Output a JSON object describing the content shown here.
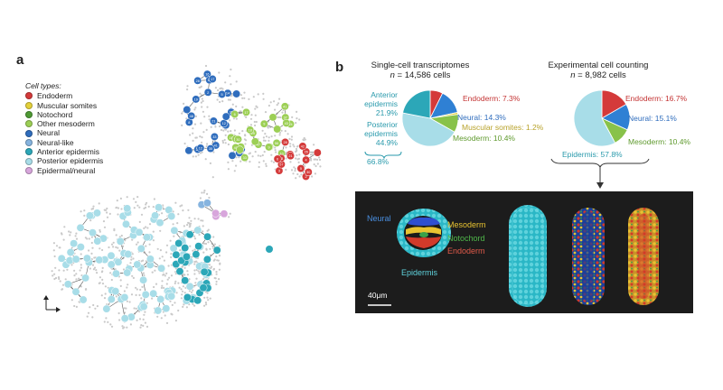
{
  "panel_a": {
    "letter": "a",
    "legend_title": "Cell types:",
    "legend": [
      {
        "label": "Endoderm",
        "color": "#d43a3a"
      },
      {
        "label": "Muscular somites",
        "color": "#e4d13a"
      },
      {
        "label": "Notochord",
        "color": "#4e9a34"
      },
      {
        "label": "Other mesoderm",
        "color": "#9ccf55"
      },
      {
        "label": "Neural",
        "color": "#2f6dbd"
      },
      {
        "label": "Neural-like",
        "color": "#86b4df"
      },
      {
        "label": "Anterior epidermis",
        "color": "#2ca7b8"
      },
      {
        "label": "Posterior epidermis",
        "color": "#a8dde8"
      },
      {
        "label": "Epidermal/neural",
        "color": "#d8a6dc"
      }
    ],
    "node_labels": {
      "neural": [
        "14",
        "19",
        "2",
        "8",
        "17",
        "16",
        "5",
        "21",
        "39",
        "40",
        "48",
        "15",
        "17",
        "33",
        "20",
        "12",
        "43",
        "41",
        "35",
        "12",
        "28"
      ],
      "mesoderm": [
        "29",
        "8",
        "56",
        "18",
        "24",
        "16",
        "20",
        "41",
        "37",
        "6",
        "40",
        "9",
        "47",
        "43",
        "30",
        "41",
        "10",
        "9",
        "17",
        "33"
      ],
      "endoderm": [
        "5",
        "4",
        "3",
        "7",
        "2",
        "26",
        "21",
        "28",
        "30",
        "57",
        "42",
        "13",
        "6"
      ]
    }
  },
  "panel_b": {
    "letter": "b",
    "pie_left": {
      "title": "Single-cell transcriptomes",
      "n_prefix": "n",
      "n_suffix": " = 14,586 cells",
      "slices": [
        {
          "name": "Endoderm",
          "value": 7.3,
          "color": "#d43a3a"
        },
        {
          "name": "Neural",
          "value": 14.3,
          "color": "#2f80d4"
        },
        {
          "name": "Muscular somites",
          "value": 1.2,
          "color": "#e4d13a"
        },
        {
          "name": "Mesoderm",
          "value": 10.4,
          "color": "#88c24a"
        },
        {
          "name": "Posterior epidermis",
          "value": 44.9,
          "color": "#a8dde8"
        },
        {
          "name": "Anterior epidermis",
          "value": 21.9,
          "color": "#2ca7b8"
        }
      ],
      "labels": {
        "endoderm": "Endoderm: 7.3%",
        "neural": "Neural: 14.3%",
        "muscular": "Muscular somites: 1.2%",
        "mesoderm": "Mesoderm: 10.4%",
        "anterior_line1": "Anterior",
        "anterior_line2": "epidermis",
        "anterior_value": "21.9%",
        "posterior_line1": "Posterior",
        "posterior_line2": "epidermis",
        "posterior_value": "44.9%",
        "epidermis_total": "66.8%"
      }
    },
    "pie_right": {
      "title": "Experimental cell counting",
      "n_prefix": "n",
      "n_suffix": " = 8,982 cells",
      "slices": [
        {
          "name": "Endoderm",
          "value": 16.7,
          "color": "#d43a3a"
        },
        {
          "name": "Neural",
          "value": 15.1,
          "color": "#2f80d4"
        },
        {
          "name": "Mesoderm",
          "value": 10.4,
          "color": "#88c24a"
        },
        {
          "name": "Epidermis",
          "value": 57.8,
          "color": "#a8dde8"
        }
      ],
      "labels": {
        "endoderm": "Endoderm: 16.7%",
        "neural": "Neural: 15.1%",
        "mesoderm": "Mesoderm: 10.4%",
        "epidermis": "Epidermis: 57.8%"
      }
    },
    "microscopy": {
      "neural": "Neural",
      "mesoderm": "Mesoderm",
      "notochord": "Notochord",
      "endoderm": "Endoderm",
      "epidermis": "Epidermis",
      "scale": "40μm"
    }
  }
}
